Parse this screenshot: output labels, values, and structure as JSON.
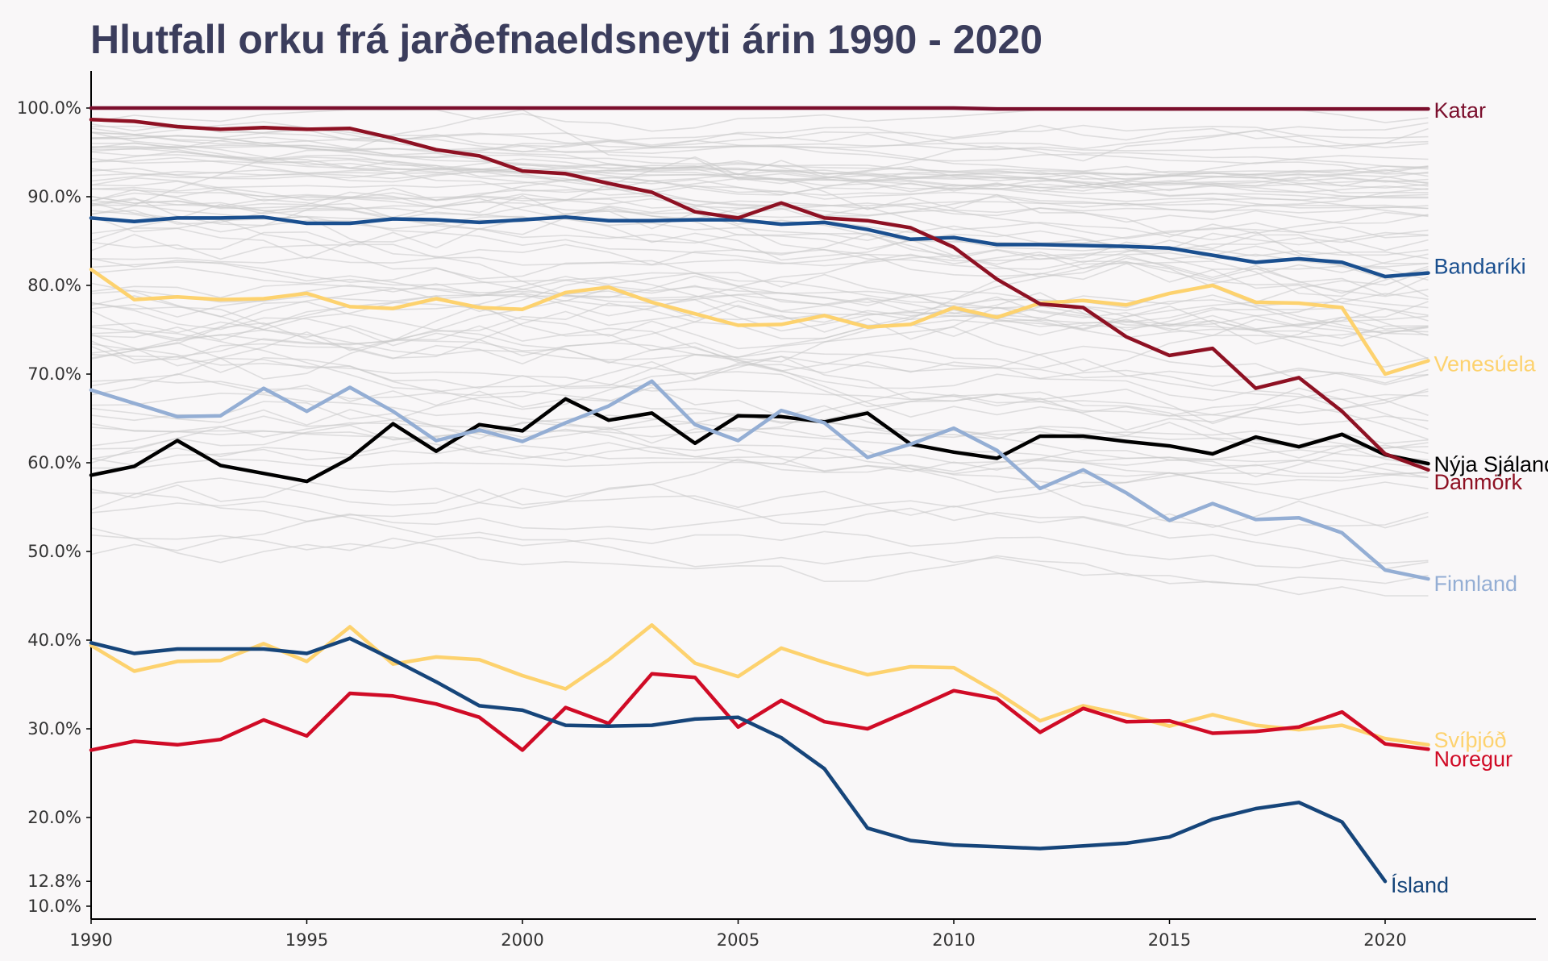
{
  "chart_data": {
    "type": "line",
    "title": "Hlutfall orku frá jarðefnaeldsneyti árin 1990 - 2020",
    "xlabel": "",
    "ylabel": "",
    "xlim": [
      1990,
      2023.5
    ],
    "ylim": [
      8,
      104
    ],
    "grid": false,
    "x_ticks": [
      1990,
      1995,
      2000,
      2005,
      2010,
      2015,
      2020
    ],
    "x_tick_labels": [
      "1990",
      "1995",
      "2000",
      "2005",
      "2010",
      "2015",
      "2020"
    ],
    "y_ticks": [
      10,
      12.8,
      20,
      30,
      40,
      50,
      60,
      70,
      80,
      90,
      100
    ],
    "y_tick_labels": [
      "10.0%",
      "12.8%",
      "20.0%",
      "30.0%",
      "40.0%",
      "50.0%",
      "60.0%",
      "70.0%",
      "80.0%",
      "90.0%",
      "100.0%"
    ],
    "background_series_color": "#c8c8c8",
    "series": [
      {
        "name": "Katar",
        "color": "#7b0f2d",
        "x_start": 1990,
        "values": [
          100,
          100,
          100,
          100,
          100,
          100,
          100,
          100,
          100,
          100,
          100,
          100,
          100,
          100,
          100,
          100,
          100,
          100,
          100,
          100,
          100,
          99.9,
          99.9,
          99.9,
          99.9,
          99.9,
          99.9,
          99.9,
          99.9,
          99.9,
          99.9,
          99.9
        ]
      },
      {
        "name": "Bandaríki",
        "color": "#1a4f8f",
        "x_start": 1990,
        "values": [
          87.6,
          87.2,
          87.6,
          87.6,
          87.7,
          87.0,
          87.0,
          87.5,
          87.4,
          87.1,
          87.4,
          87.7,
          87.3,
          87.3,
          87.4,
          87.4,
          86.9,
          87.1,
          86.3,
          85.2,
          85.4,
          84.6,
          84.6,
          84.5,
          84.4,
          84.2,
          83.4,
          82.6,
          83.0,
          82.6,
          81.0,
          81.4
        ]
      },
      {
        "name": "Venesúela",
        "color": "#fdd26e",
        "x_start": 1990,
        "values": [
          81.8,
          78.4,
          78.7,
          78.4,
          78.5,
          79.1,
          77.6,
          77.4,
          78.5,
          77.5,
          77.3,
          79.2,
          79.8,
          78.1,
          76.8,
          75.5,
          75.6,
          76.6,
          75.3,
          75.6,
          77.5,
          76.4,
          78.0,
          78.3,
          77.8,
          79.1,
          80.0,
          78.1,
          78.0,
          77.5,
          70.0,
          71.5
        ]
      },
      {
        "name": "Nýja Sjáland",
        "color": "#000000",
        "x_start": 1990,
        "values": [
          58.6,
          59.6,
          62.5,
          59.7,
          58.8,
          57.9,
          60.5,
          64.4,
          61.3,
          64.3,
          63.6,
          67.2,
          64.8,
          65.6,
          62.2,
          65.3,
          65.2,
          64.6,
          65.6,
          62.1,
          61.2,
          60.5,
          63.0,
          63.0,
          62.4,
          61.9,
          61.0,
          62.9,
          61.8,
          63.2,
          60.9,
          59.9
        ]
      },
      {
        "name": "Danmörk",
        "color": "#8e1123",
        "x_start": 1990,
        "values": [
          98.7,
          98.5,
          97.9,
          97.6,
          97.8,
          97.6,
          97.7,
          96.6,
          95.3,
          94.6,
          92.9,
          92.6,
          91.5,
          90.5,
          88.3,
          87.6,
          89.3,
          87.6,
          87.3,
          86.5,
          84.3,
          80.7,
          77.9,
          77.5,
          74.2,
          72.1,
          72.9,
          68.4,
          69.6,
          65.8,
          61.0,
          59.2
        ]
      },
      {
        "name": "Finnland",
        "color": "#94aed4",
        "x_start": 1990,
        "values": [
          68.2,
          66.7,
          65.2,
          65.3,
          68.4,
          65.8,
          68.5,
          65.8,
          62.5,
          63.7,
          62.4,
          64.5,
          66.4,
          69.2,
          64.3,
          62.5,
          65.9,
          64.5,
          60.6,
          62.1,
          63.9,
          61.4,
          57.1,
          59.2,
          56.6,
          53.5,
          55.4,
          53.6,
          53.8,
          52.1,
          47.9,
          46.9
        ]
      },
      {
        "name": "Svíþjóð",
        "color": "#fdd26e",
        "x_start": 1990,
        "values": [
          39.4,
          36.5,
          37.6,
          37.7,
          39.6,
          37.6,
          41.5,
          37.3,
          38.1,
          37.8,
          36.0,
          34.5,
          37.8,
          41.7,
          37.4,
          35.9,
          39.1,
          37.5,
          36.1,
          37.0,
          36.9,
          34.1,
          30.9,
          32.6,
          31.6,
          30.3,
          31.6,
          30.4,
          29.9,
          30.4,
          28.9,
          28.2
        ]
      },
      {
        "name": "Noregur",
        "color": "#d00b26",
        "x_start": 1990,
        "values": [
          27.6,
          28.6,
          28.2,
          28.8,
          31.0,
          29.2,
          34.0,
          33.7,
          32.8,
          31.3,
          27.6,
          32.4,
          30.6,
          36.2,
          35.8,
          30.2,
          33.2,
          30.8,
          30.0,
          32.1,
          34.3,
          33.4,
          29.6,
          32.3,
          30.8,
          30.9,
          29.5,
          29.7,
          30.2,
          31.9,
          28.3,
          27.7
        ]
      },
      {
        "name": "Ísland",
        "color": "#16457a",
        "x_start": 1990,
        "values": [
          39.7,
          38.5,
          39.0,
          39.0,
          39.0,
          38.5,
          40.2,
          37.8,
          35.3,
          32.6,
          32.1,
          30.4,
          30.3,
          30.4,
          31.1,
          31.3,
          29.0,
          25.5,
          18.8,
          17.4,
          16.9,
          16.7,
          16.5,
          16.8,
          17.1,
          17.8,
          19.8,
          21.0,
          21.7,
          19.5,
          12.8
        ]
      }
    ]
  }
}
